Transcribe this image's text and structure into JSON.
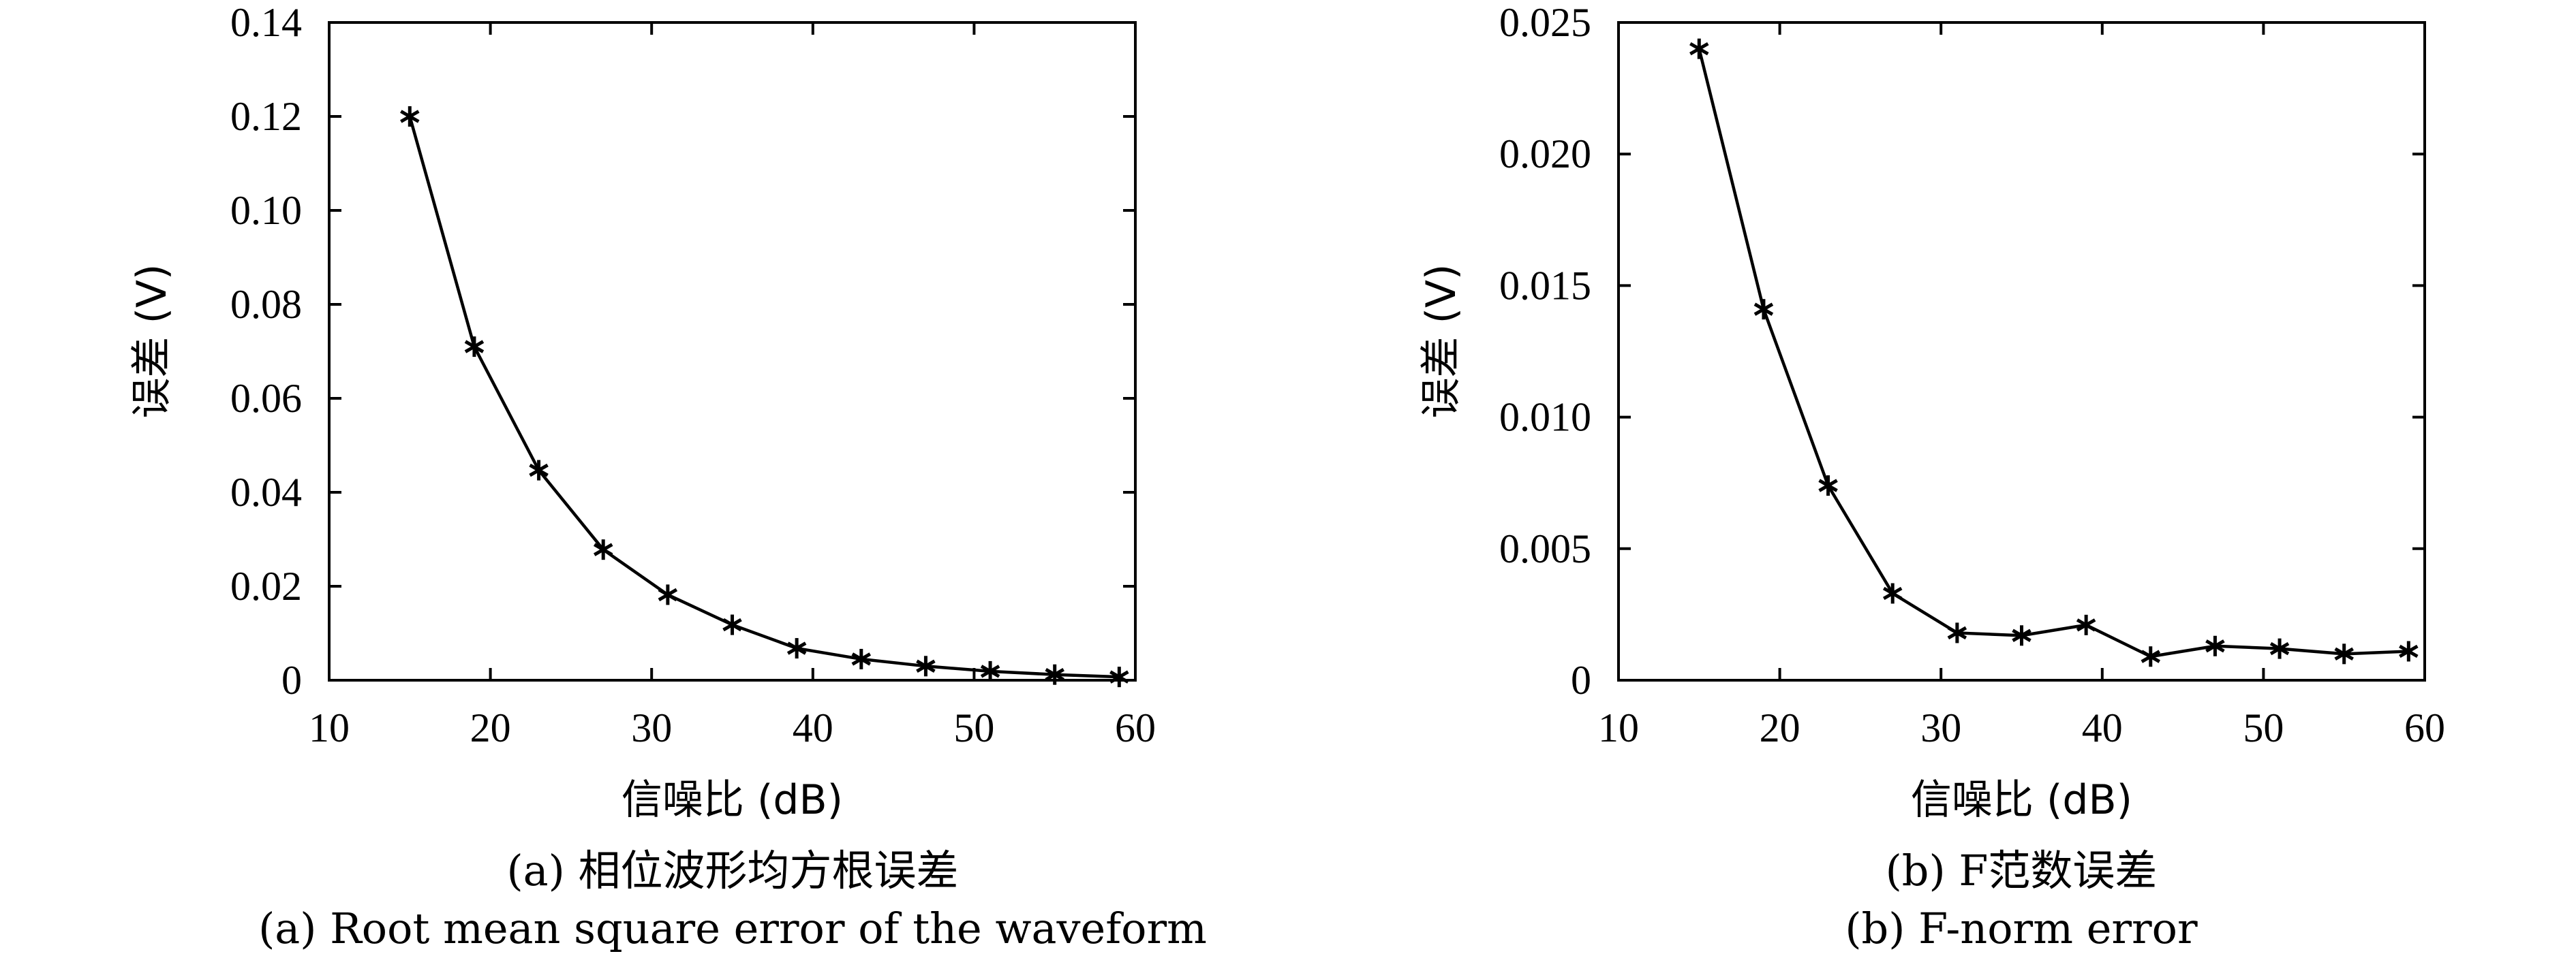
{
  "chart_data": [
    {
      "type": "line",
      "xlabel": "信噪比 (dB)",
      "ylabel": "误差 (V)",
      "xlim": [
        10,
        60
      ],
      "ylim": [
        0,
        0.14
      ],
      "xticks": [
        "10",
        "20",
        "30",
        "40",
        "50",
        "60"
      ],
      "yticks": [
        "0",
        "0.02",
        "0.04",
        "0.06",
        "0.08",
        "0.10",
        "0.12",
        "0.14"
      ],
      "caption_cn": "(a) 相位波形均方根误差",
      "caption_en": "(a) Root mean square error of the waveform",
      "marker": "asterisk",
      "grid": false,
      "x": [
        15,
        19,
        23,
        27,
        31,
        35,
        39,
        43,
        47,
        51,
        55,
        59
      ],
      "y": [
        0.12,
        0.071,
        0.0447,
        0.0278,
        0.0182,
        0.0118,
        0.0068,
        0.0045,
        0.003,
        0.0019,
        0.0012,
        0.0007
      ]
    },
    {
      "type": "line",
      "xlabel": "信噪比 (dB)",
      "ylabel": "误差 (V)",
      "xlim": [
        10,
        60
      ],
      "ylim": [
        0,
        0.025
      ],
      "xticks": [
        "10",
        "20",
        "30",
        "40",
        "50",
        "60"
      ],
      "yticks": [
        "0",
        "0.005",
        "0.010",
        "0.015",
        "0.020",
        "0.025"
      ],
      "caption_cn": "(b) F范数误差",
      "caption_en": "(b) F-norm error",
      "marker": "asterisk",
      "grid": false,
      "x": [
        15,
        19,
        23,
        27,
        31,
        35,
        39,
        43,
        47,
        51,
        55,
        59
      ],
      "y": [
        0.024,
        0.0141,
        0.0074,
        0.0033,
        0.0018,
        0.0017,
        0.0021,
        0.0009,
        0.0013,
        0.0012,
        0.001,
        0.0011
      ]
    }
  ]
}
